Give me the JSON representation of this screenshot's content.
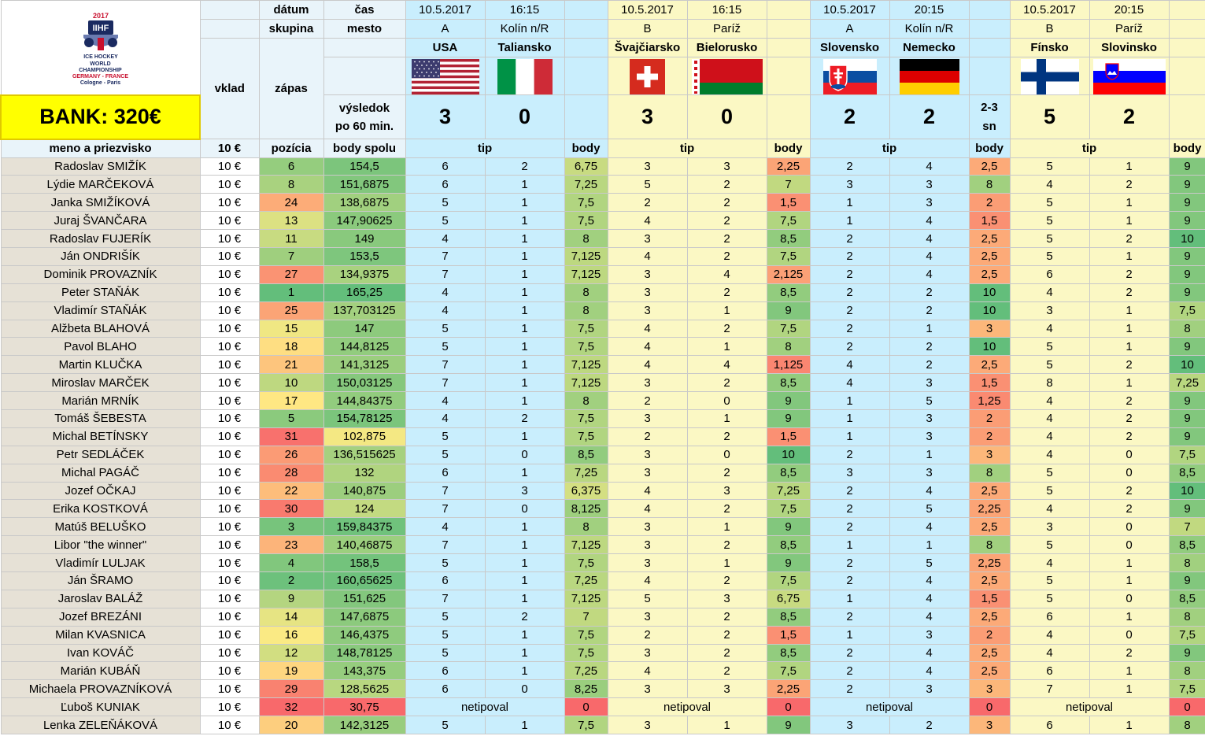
{
  "logo": {
    "year": "2017",
    "brand": "IIHF",
    "line1": "ICE HOCKEY",
    "line2": "WORLD",
    "line3": "CHAMPIONSHIP",
    "line4": "GERMANY - FRANCE",
    "line5": "Cologne - Paris"
  },
  "labels": {
    "datum": "dátum",
    "cas": "čas",
    "skupina": "skupina",
    "mesto": "mesto",
    "vklad": "vklad",
    "zapas": "zápas",
    "vysledok1": "výsledok",
    "vysledok2": "po 60 min.",
    "bank": "BANK: 320€",
    "meno": "meno a priezvisko",
    "vklad_value": "10 €",
    "pozicia": "pozícia",
    "body_spolu": "body spolu",
    "tip": "tip",
    "body": "body",
    "extra1": "2-3",
    "extra2": "sn"
  },
  "matches": [
    {
      "date": "10.5.2017",
      "time": "16:15",
      "group": "A",
      "city": "Kolín n/R",
      "home": "USA",
      "away": "Taliansko",
      "home_score": "3",
      "away_score": "0",
      "home_flag": "flag-usa",
      "away_flag": "flag-italy"
    },
    {
      "date": "10.5.2017",
      "time": "16:15",
      "group": "B",
      "city": "Paríž",
      "home": "Švajčiarsko",
      "away": "Bielorusko",
      "home_score": "3",
      "away_score": "0",
      "home_flag": "flag-switzerland",
      "away_flag": "flag-belarus"
    },
    {
      "date": "10.5.2017",
      "time": "20:15",
      "group": "A",
      "city": "Kolín n/R",
      "home": "Slovensko",
      "away": "Nemecko",
      "home_score": "2",
      "away_score": "2",
      "home_flag": "flag-slovakia",
      "away_flag": "flag-germany"
    },
    {
      "date": "10.5.2017",
      "time": "20:15",
      "group": "B",
      "city": "Paríž",
      "home": "Fínsko",
      "away": "Slovinsko",
      "home_score": "5",
      "away_score": "2",
      "home_flag": "flag-finland",
      "away_flag": "flag-slovenia"
    }
  ],
  "players": [
    {
      "name": "Radoslav SMIŽÍK",
      "vklad": "10 €",
      "pos": "6",
      "total": "154,5",
      "m": [
        [
          "6",
          "2",
          "6,75"
        ],
        [
          "3",
          "3",
          "2,25"
        ],
        [
          "2",
          "4",
          "2,5"
        ],
        [
          "5",
          "1",
          "9"
        ]
      ]
    },
    {
      "name": "Lýdie MARČEKOVÁ",
      "vklad": "10 €",
      "pos": "8",
      "total": "151,6875",
      "m": [
        [
          "6",
          "1",
          "7,25"
        ],
        [
          "5",
          "2",
          "7"
        ],
        [
          "3",
          "3",
          "8"
        ],
        [
          "4",
          "2",
          "9"
        ]
      ]
    },
    {
      "name": "Janka SMIŽÍKOVÁ",
      "vklad": "10 €",
      "pos": "24",
      "total": "138,6875",
      "m": [
        [
          "5",
          "1",
          "7,5"
        ],
        [
          "2",
          "2",
          "1,5"
        ],
        [
          "1",
          "3",
          "2"
        ],
        [
          "5",
          "1",
          "9"
        ]
      ]
    },
    {
      "name": "Juraj ŠVANČARA",
      "vklad": "10 €",
      "pos": "13",
      "total": "147,90625",
      "m": [
        [
          "5",
          "1",
          "7,5"
        ],
        [
          "4",
          "2",
          "7,5"
        ],
        [
          "1",
          "4",
          "1,5"
        ],
        [
          "5",
          "1",
          "9"
        ]
      ]
    },
    {
      "name": "Radoslav FUJERÍK",
      "vklad": "10 €",
      "pos": "11",
      "total": "149",
      "m": [
        [
          "4",
          "1",
          "8"
        ],
        [
          "3",
          "2",
          "8,5"
        ],
        [
          "2",
          "4",
          "2,5"
        ],
        [
          "5",
          "2",
          "10"
        ]
      ]
    },
    {
      "name": "Ján ONDRIŠÍK",
      "vklad": "10 €",
      "pos": "7",
      "total": "153,5",
      "m": [
        [
          "7",
          "1",
          "7,125"
        ],
        [
          "4",
          "2",
          "7,5"
        ],
        [
          "2",
          "4",
          "2,5"
        ],
        [
          "5",
          "1",
          "9"
        ]
      ]
    },
    {
      "name": "Dominik PROVAZNÍK",
      "vklad": "10 €",
      "pos": "27",
      "total": "134,9375",
      "m": [
        [
          "7",
          "1",
          "7,125"
        ],
        [
          "3",
          "4",
          "2,125"
        ],
        [
          "2",
          "4",
          "2,5"
        ],
        [
          "6",
          "2",
          "9"
        ]
      ]
    },
    {
      "name": "Peter STAŇÁK",
      "vklad": "10 €",
      "pos": "1",
      "total": "165,25",
      "m": [
        [
          "4",
          "1",
          "8"
        ],
        [
          "3",
          "2",
          "8,5"
        ],
        [
          "2",
          "2",
          "10"
        ],
        [
          "4",
          "2",
          "9"
        ]
      ]
    },
    {
      "name": "Vladimír STAŇÁK",
      "vklad": "10 €",
      "pos": "25",
      "total": "137,703125",
      "m": [
        [
          "4",
          "1",
          "8"
        ],
        [
          "3",
          "1",
          "9"
        ],
        [
          "2",
          "2",
          "10"
        ],
        [
          "3",
          "1",
          "7,5"
        ]
      ]
    },
    {
      "name": "Alžbeta BLAHOVÁ",
      "vklad": "10 €",
      "pos": "15",
      "total": "147",
      "m": [
        [
          "5",
          "1",
          "7,5"
        ],
        [
          "4",
          "2",
          "7,5"
        ],
        [
          "2",
          "1",
          "3"
        ],
        [
          "4",
          "1",
          "8"
        ]
      ]
    },
    {
      "name": "Pavol BLAHO",
      "vklad": "10 €",
      "pos": "18",
      "total": "144,8125",
      "m": [
        [
          "5",
          "1",
          "7,5"
        ],
        [
          "4",
          "1",
          "8"
        ],
        [
          "2",
          "2",
          "10"
        ],
        [
          "5",
          "1",
          "9"
        ]
      ]
    },
    {
      "name": "Martin KLUČKA",
      "vklad": "10 €",
      "pos": "21",
      "total": "141,3125",
      "m": [
        [
          "7",
          "1",
          "7,125"
        ],
        [
          "4",
          "4",
          "1,125"
        ],
        [
          "4",
          "2",
          "2,5"
        ],
        [
          "5",
          "2",
          "10"
        ]
      ]
    },
    {
      "name": "Miroslav MARČEK",
      "vklad": "10 €",
      "pos": "10",
      "total": "150,03125",
      "m": [
        [
          "7",
          "1",
          "7,125"
        ],
        [
          "3",
          "2",
          "8,5"
        ],
        [
          "4",
          "3",
          "1,5"
        ],
        [
          "8",
          "1",
          "7,25"
        ]
      ]
    },
    {
      "name": "Marián MRNÍK",
      "vklad": "10 €",
      "pos": "17",
      "total": "144,84375",
      "m": [
        [
          "4",
          "1",
          "8"
        ],
        [
          "2",
          "0",
          "9"
        ],
        [
          "1",
          "5",
          "1,25"
        ],
        [
          "4",
          "2",
          "9"
        ]
      ]
    },
    {
      "name": "Tomáš ŠEBESTA",
      "vklad": "10 €",
      "pos": "5",
      "total": "154,78125",
      "m": [
        [
          "4",
          "2",
          "7,5"
        ],
        [
          "3",
          "1",
          "9"
        ],
        [
          "1",
          "3",
          "2"
        ],
        [
          "4",
          "2",
          "9"
        ]
      ]
    },
    {
      "name": "Michal BETÍNSKY",
      "vklad": "10 €",
      "pos": "31",
      "total": "102,875",
      "m": [
        [
          "5",
          "1",
          "7,5"
        ],
        [
          "2",
          "2",
          "1,5"
        ],
        [
          "1",
          "3",
          "2"
        ],
        [
          "4",
          "2",
          "9"
        ]
      ]
    },
    {
      "name": "Petr SEDLÁČEK",
      "vklad": "10 €",
      "pos": "26",
      "total": "136,515625",
      "m": [
        [
          "5",
          "0",
          "8,5"
        ],
        [
          "3",
          "0",
          "10"
        ],
        [
          "2",
          "1",
          "3"
        ],
        [
          "4",
          "0",
          "7,5"
        ]
      ]
    },
    {
      "name": "Michal PAGÁČ",
      "vklad": "10 €",
      "pos": "28",
      "total": "132",
      "m": [
        [
          "6",
          "1",
          "7,25"
        ],
        [
          "3",
          "2",
          "8,5"
        ],
        [
          "3",
          "3",
          "8"
        ],
        [
          "5",
          "0",
          "8,5"
        ]
      ]
    },
    {
      "name": "Jozef OČKAJ",
      "vklad": "10 €",
      "pos": "22",
      "total": "140,875",
      "m": [
        [
          "7",
          "3",
          "6,375"
        ],
        [
          "4",
          "3",
          "7,25"
        ],
        [
          "2",
          "4",
          "2,5"
        ],
        [
          "5",
          "2",
          "10"
        ]
      ]
    },
    {
      "name": "Erika KOSTKOVÁ",
      "vklad": "10 €",
      "pos": "30",
      "total": "124",
      "m": [
        [
          "7",
          "0",
          "8,125"
        ],
        [
          "4",
          "2",
          "7,5"
        ],
        [
          "2",
          "5",
          "2,25"
        ],
        [
          "4",
          "2",
          "9"
        ]
      ]
    },
    {
      "name": "Matúš BELUŠKO",
      "vklad": "10 €",
      "pos": "3",
      "total": "159,84375",
      "m": [
        [
          "4",
          "1",
          "8"
        ],
        [
          "3",
          "1",
          "9"
        ],
        [
          "2",
          "4",
          "2,5"
        ],
        [
          "3",
          "0",
          "7"
        ]
      ]
    },
    {
      "name": "Libor \"the winner\"",
      "vklad": "10 €",
      "pos": "23",
      "total": "140,46875",
      "m": [
        [
          "7",
          "1",
          "7,125"
        ],
        [
          "3",
          "2",
          "8,5"
        ],
        [
          "1",
          "1",
          "8"
        ],
        [
          "5",
          "0",
          "8,5"
        ]
      ]
    },
    {
      "name": "Vladimír LULJAK",
      "vklad": "10 €",
      "pos": "4",
      "total": "158,5",
      "m": [
        [
          "5",
          "1",
          "7,5"
        ],
        [
          "3",
          "1",
          "9"
        ],
        [
          "2",
          "5",
          "2,25"
        ],
        [
          "4",
          "1",
          "8"
        ]
      ]
    },
    {
      "name": "Ján ŠRAMO",
      "vklad": "10 €",
      "pos": "2",
      "total": "160,65625",
      "m": [
        [
          "6",
          "1",
          "7,25"
        ],
        [
          "4",
          "2",
          "7,5"
        ],
        [
          "2",
          "4",
          "2,5"
        ],
        [
          "5",
          "1",
          "9"
        ]
      ]
    },
    {
      "name": "Jaroslav BALÁŽ",
      "vklad": "10 €",
      "pos": "9",
      "total": "151,625",
      "m": [
        [
          "7",
          "1",
          "7,125"
        ],
        [
          "5",
          "3",
          "6,75"
        ],
        [
          "1",
          "4",
          "1,5"
        ],
        [
          "5",
          "0",
          "8,5"
        ]
      ]
    },
    {
      "name": "Jozef BREZÁNI",
      "vklad": "10 €",
      "pos": "14",
      "total": "147,6875",
      "m": [
        [
          "5",
          "2",
          "7"
        ],
        [
          "3",
          "2",
          "8,5"
        ],
        [
          "2",
          "4",
          "2,5"
        ],
        [
          "6",
          "1",
          "8"
        ]
      ]
    },
    {
      "name": "Milan KVASNICA",
      "vklad": "10 €",
      "pos": "16",
      "total": "146,4375",
      "m": [
        [
          "5",
          "1",
          "7,5"
        ],
        [
          "2",
          "2",
          "1,5"
        ],
        [
          "1",
          "3",
          "2"
        ],
        [
          "4",
          "0",
          "7,5"
        ]
      ]
    },
    {
      "name": "Ivan KOVÁČ",
      "vklad": "10 €",
      "pos": "12",
      "total": "148,78125",
      "m": [
        [
          "5",
          "1",
          "7,5"
        ],
        [
          "3",
          "2",
          "8,5"
        ],
        [
          "2",
          "4",
          "2,5"
        ],
        [
          "4",
          "2",
          "9"
        ]
      ]
    },
    {
      "name": "Marián KUBÁŇ",
      "vklad": "10 €",
      "pos": "19",
      "total": "143,375",
      "m": [
        [
          "6",
          "1",
          "7,25"
        ],
        [
          "4",
          "2",
          "7,5"
        ],
        [
          "2",
          "4",
          "2,5"
        ],
        [
          "6",
          "1",
          "8"
        ]
      ]
    },
    {
      "name": "Michaela PROVAZNÍKOVÁ",
      "vklad": "10 €",
      "pos": "29",
      "total": "128,5625",
      "m": [
        [
          "6",
          "0",
          "8,25"
        ],
        [
          "3",
          "3",
          "2,25"
        ],
        [
          "2",
          "3",
          "3"
        ],
        [
          "7",
          "1",
          "7,5"
        ]
      ]
    },
    {
      "name": "Ľuboš KUNIAK",
      "vklad": "10 €",
      "pos": "32",
      "total": "30,75",
      "np": "netipoval",
      "m": [
        [
          "",
          "",
          "0"
        ],
        [
          "",
          "",
          "0"
        ],
        [
          "",
          "",
          "0"
        ],
        [
          "",
          "",
          "0"
        ]
      ]
    },
    {
      "name": "Lenka ZELEŇÁKOVÁ",
      "vklad": "10 €",
      "pos": "20",
      "total": "142,3125",
      "m": [
        [
          "5",
          "1",
          "7,5"
        ],
        [
          "3",
          "1",
          "9"
        ],
        [
          "3",
          "2",
          "3"
        ],
        [
          "6",
          "1",
          "8"
        ]
      ]
    }
  ],
  "colors": {
    "header_light": "#e9f4fa",
    "cyan": "#c9eefd",
    "light_yellow": "#fbf8c4",
    "bank_yellow": "#ffff00",
    "name_bg": "#e6e1d6"
  }
}
